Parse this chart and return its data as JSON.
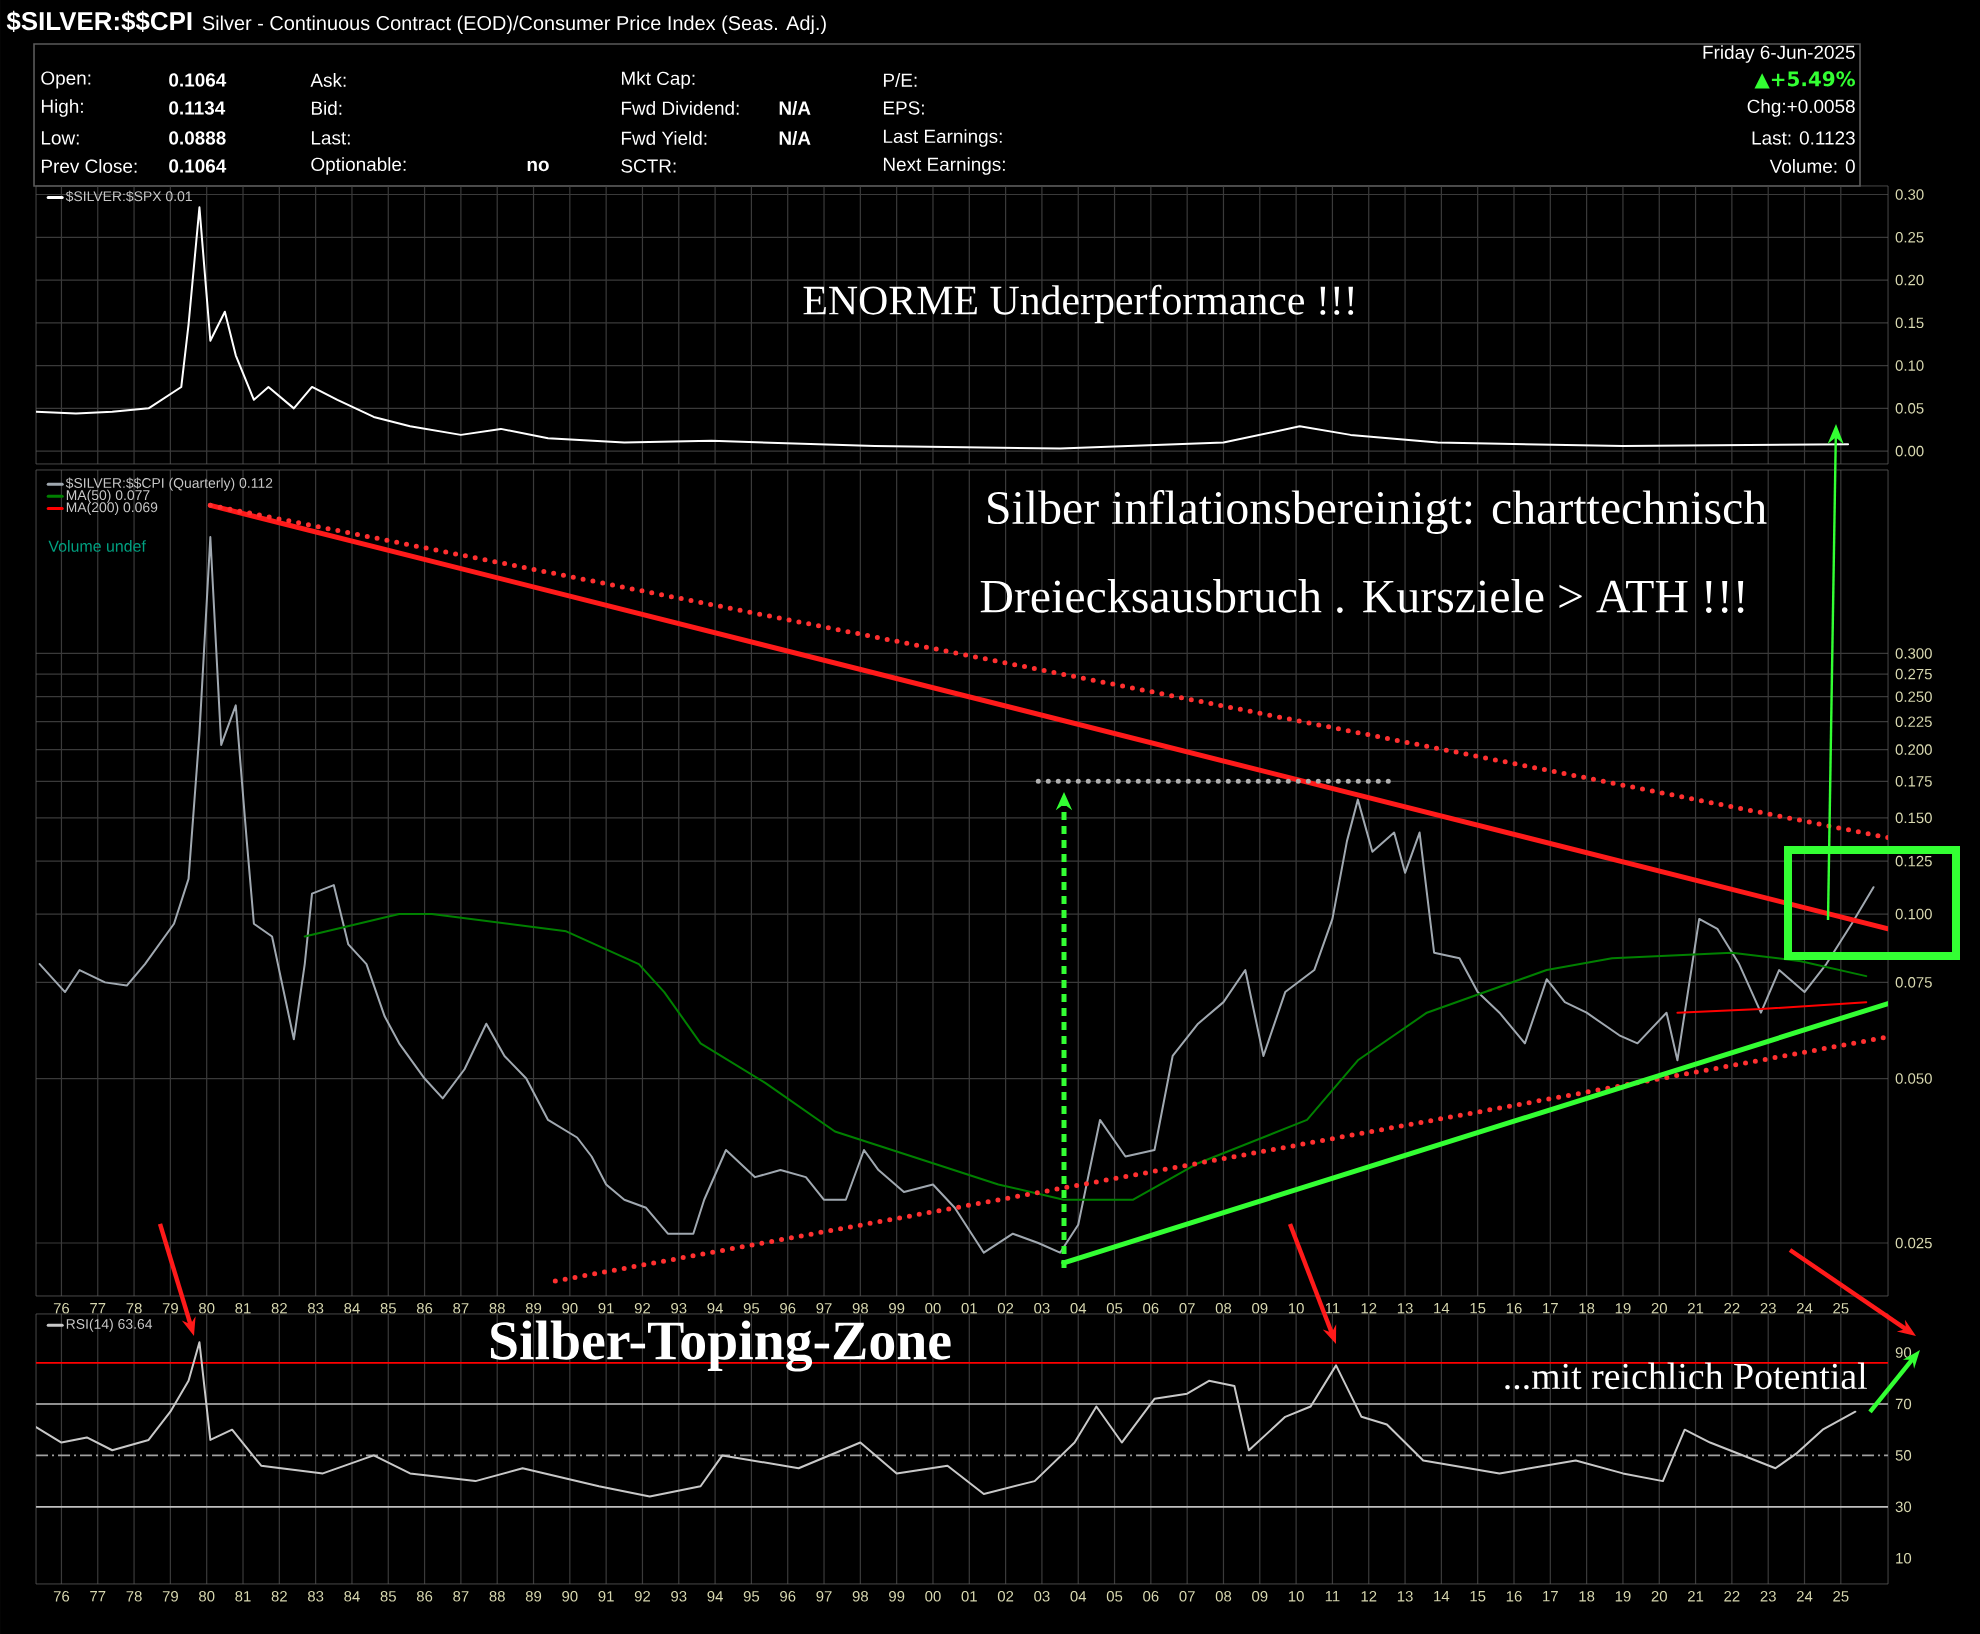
{
  "chart_data": [
    {
      "type": "line",
      "title": "$SILVER:$$CPI",
      "subtitle": "Silver - Continuous Contract (EOD)/Consumer Price Index (Seas. Adj.)",
      "annotations": [
        "Open:",
        "0.1064",
        "High:",
        "0.1134",
        "Low:",
        "0.0888",
        "Prev Close:",
        "0.1064",
        "Ask:",
        "Bid:",
        "Last:",
        "Optionable:",
        "no",
        "Mkt Cap:",
        "Fwd Dividend:",
        "N/A",
        "Fwd Yield:",
        "N/A",
        "SCTR:",
        "P/E:",
        "EPS:",
        "Last Earnings:",
        "Next Earnings:",
        "Friday  6-Jun-2025",
        "▲+5.49%",
        "Chg:+0.0058",
        "Last: 0.1123",
        "Volume:    0",
        "ENORME Underperformance !!!"
      ],
      "x": [
        1975.3,
        1976.4,
        1977.4,
        1978.4,
        1979.3,
        1979.5,
        1979.8,
        1980.1,
        1980.5,
        1980.8,
        1981.3,
        1981.7,
        1982.4,
        1982.9,
        1983.6,
        1984.6,
        1985.6,
        1987.0,
        1988.1,
        1989.4,
        1991.5,
        1993.9,
        1998.4,
        2003.5,
        2008.0,
        2010.1,
        2011.5,
        2013.9,
        2019.0,
        2025.2
      ],
      "series": [
        {
          "name": "$SILVER:$SPX 0.01",
          "color": "#ffffff",
          "values": [
            0.046,
            0.044,
            0.046,
            0.05,
            0.075,
            0.148,
            0.285,
            0.129,
            0.163,
            0.112,
            0.06,
            0.075,
            0.05,
            0.075,
            0.06,
            0.04,
            0.029,
            0.019,
            0.026,
            0.015,
            0.01,
            0.012,
            0.006,
            0.003,
            0.01,
            0.029,
            0.019,
            0.01,
            0.006,
            0.008
          ]
        }
      ],
      "xlim": [
        1975.3,
        2026.3
      ],
      "ylim": [
        -0.015,
        0.31
      ],
      "xticks": [
        1976,
        1977,
        1978,
        1979,
        1980,
        1981,
        1982,
        1983,
        1984,
        1985,
        1986,
        1987,
        1988,
        1989,
        1990,
        1991,
        1992,
        1993,
        1994,
        1995,
        1996,
        1997,
        1998,
        1999,
        2000,
        2001,
        2002,
        2003,
        2004,
        2005,
        2006,
        2007,
        2008,
        2009,
        2010,
        2011,
        2012,
        2013,
        2014,
        2015,
        2016,
        2017,
        2018,
        2019,
        2020,
        2021,
        2022,
        2023,
        2024,
        2025
      ],
      "yticks": [
        {
          "value": 0,
          "label": "0.00"
        },
        0.05,
        {
          "value": 0.1,
          "label": "0.10"
        },
        0.15,
        {
          "value": 0.2,
          "label": "0.20"
        },
        0.25,
        {
          "value": 0.3,
          "label": "0.30"
        }
      ],
      "tick_labels": "y",
      "grid": true,
      "legend": "top left"
    },
    {
      "type": "line",
      "log": true,
      "annotations": [
        "Silber inflationsbereinigt: charttechnisch",
        "Dreiecksausbruch . Kursziele > ATH !!!",
        "Volume undef"
      ],
      "series": [
        {
          "name": "$SILVER:$$CPI (Quarterly) 0.112",
          "color": "#a0a8b0",
          "x": [
            1975.4,
            1976.1,
            1976.5,
            1977.2,
            1977.8,
            1978.3,
            1979.1,
            1979.5,
            1979.8,
            1980.1,
            1980.4,
            1980.8,
            1981.1,
            1981.3,
            1981.8,
            1982.4,
            1982.7,
            1982.9,
            1983.5,
            1983.9,
            1984.4,
            1984.9,
            1985.3,
            1986.0,
            1986.5,
            1987.1,
            1987.7,
            1988.2,
            1988.8,
            1989.4,
            1990.2,
            1990.6,
            1991.0,
            1991.5,
            1992.1,
            1992.7,
            1993.4,
            1993.7,
            1994.3,
            1995.1,
            1995.8,
            1996.5,
            1997.0,
            1997.6,
            1998.1,
            1998.5,
            1999.2,
            2000.0,
            2000.6,
            2001.4,
            2002.2,
            2002.9,
            2003.5,
            2004.0,
            2004.6,
            2005.3,
            2006.1,
            2006.6,
            2007.3,
            2008.0,
            2008.6,
            2009.1,
            2009.7,
            2010.5,
            2011.0,
            2011.4,
            2011.7,
            2012.1,
            2012.7,
            2013.0,
            2013.4,
            2013.8,
            2014.5,
            2015.0,
            2015.6,
            2016.3,
            2016.9,
            2017.4,
            2018.0,
            2018.9,
            2019.4,
            2020.2,
            2020.5,
            2021.1,
            2021.6,
            2022.2,
            2022.8,
            2023.3,
            2024.0,
            2024.6,
            2025.3,
            2025.9
          ],
          "values": [
            0.081,
            0.072,
            0.079,
            0.075,
            0.074,
            0.081,
            0.096,
            0.116,
            0.214,
            0.49,
            0.204,
            0.241,
            0.137,
            0.096,
            0.091,
            0.059,
            0.081,
            0.109,
            0.113,
            0.088,
            0.081,
            0.065,
            0.058,
            0.05,
            0.046,
            0.052,
            0.063,
            0.055,
            0.05,
            0.042,
            0.039,
            0.036,
            0.032,
            0.03,
            0.029,
            0.026,
            0.026,
            0.03,
            0.037,
            0.033,
            0.034,
            0.033,
            0.03,
            0.03,
            0.037,
            0.034,
            0.031,
            0.032,
            0.029,
            0.024,
            0.026,
            0.025,
            0.024,
            0.027,
            0.042,
            0.036,
            0.037,
            0.055,
            0.063,
            0.069,
            0.079,
            0.055,
            0.072,
            0.079,
            0.098,
            0.136,
            0.162,
            0.13,
            0.141,
            0.119,
            0.141,
            0.085,
            0.083,
            0.072,
            0.066,
            0.058,
            0.076,
            0.069,
            0.066,
            0.06,
            0.058,
            0.066,
            0.054,
            0.098,
            0.094,
            0.081,
            0.066,
            0.079,
            0.072,
            0.081,
            0.096,
            0.112
          ]
        },
        {
          "name": "MA(50) 0.077",
          "color": "#008000",
          "x": [
            1982.7,
            1985.3,
            1986.2,
            1989.9,
            1991.9,
            1992.6,
            1993.6,
            1995.4,
            1997.3,
            2000.0,
            2001.8,
            2003.6,
            2005.5,
            2007.3,
            2010.3,
            2011.7,
            2013.6,
            2016.9,
            2018.7,
            2022.0,
            2023.9,
            2025.7
          ],
          "values": [
            0.091,
            0.1,
            0.1,
            0.093,
            0.081,
            0.072,
            0.058,
            0.049,
            0.04,
            0.035,
            0.032,
            0.03,
            0.03,
            0.035,
            0.042,
            0.054,
            0.066,
            0.079,
            0.083,
            0.085,
            0.082,
            0.077
          ]
        },
        {
          "name": "MA(200) 0.069",
          "color": "#ff0000",
          "x": [
            2020.5,
            2022.8,
            2025.7
          ],
          "values": [
            0.066,
            0.067,
            0.069
          ]
        },
        {
          "color": "#ff1a1a",
          "x": [
            1980.1,
            2026.3
          ],
          "values": [
            0.56,
            0.094
          ]
        },
        {
          "color": "#ff3030",
          "line_style": "dotted",
          "x": [
            1980.1,
            2026.3
          ],
          "values": [
            0.56,
            0.138
          ]
        },
        {
          "color": "#ff3030",
          "line_style": "dotted",
          "x": [
            1989.6,
            2026.3
          ],
          "values": [
            0.0213,
            0.0596
          ]
        },
        {
          "color": "#33ff33",
          "x": [
            2003.6,
            2026.3
          ],
          "values": [
            0.023,
            0.0686
          ]
        },
        {
          "color": "#b0b0b0",
          "line_style": "dotted",
          "x": [
            2002.9,
            2012.6
          ],
          "values": [
            0.175,
            0.175
          ]
        }
      ],
      "xlim": [
        1975.3,
        2026.3
      ],
      "ylim": [
        0.02,
        0.65
      ],
      "xticks": [
        {
          "value": 1976,
          "label": "76"
        },
        {
          "value": 1977,
          "label": "77"
        },
        {
          "value": 1978,
          "label": "78"
        },
        {
          "value": 1979,
          "label": "79"
        },
        {
          "value": 1980,
          "label": "80"
        },
        {
          "value": 1981,
          "label": "81"
        },
        {
          "value": 1982,
          "label": "82"
        },
        {
          "value": 1983,
          "label": "83"
        },
        {
          "value": 1984,
          "label": "84"
        },
        {
          "value": 1985,
          "label": "85"
        },
        {
          "value": 1986,
          "label": "86"
        },
        {
          "value": 1987,
          "label": "87"
        },
        {
          "value": 1988,
          "label": "88"
        },
        {
          "value": 1989,
          "label": "89"
        },
        {
          "value": 1990,
          "label": "90"
        },
        {
          "value": 1991,
          "label": "91"
        },
        {
          "value": 1992,
          "label": "92"
        },
        {
          "value": 1993,
          "label": "93"
        },
        {
          "value": 1994,
          "label": "94"
        },
        {
          "value": 1995,
          "label": "95"
        },
        {
          "value": 1996,
          "label": "96"
        },
        {
          "value": 1997,
          "label": "97"
        },
        {
          "value": 1998,
          "label": "98"
        },
        {
          "value": 1999,
          "label": "99"
        },
        {
          "value": 2000,
          "label": "00"
        },
        {
          "value": 2001,
          "label": "01"
        },
        {
          "value": 2002,
          "label": "02"
        },
        {
          "value": 2003,
          "label": "03"
        },
        {
          "value": 2004,
          "label": "04"
        },
        {
          "value": 2005,
          "label": "05"
        },
        {
          "value": 2006,
          "label": "06"
        },
        {
          "value": 2007,
          "label": "07"
        },
        {
          "value": 2008,
          "label": "08"
        },
        {
          "value": 2009,
          "label": "09"
        },
        {
          "value": 2010,
          "label": "10"
        },
        {
          "value": 2011,
          "label": "11"
        },
        {
          "value": 2012,
          "label": "12"
        },
        {
          "value": 2013,
          "label": "13"
        },
        {
          "value": 2014,
          "label": "14"
        },
        {
          "value": 2015,
          "label": "15"
        },
        {
          "value": 2016,
          "label": "16"
        },
        {
          "value": 2017,
          "label": "17"
        },
        {
          "value": 2018,
          "label": "18"
        },
        {
          "value": 2019,
          "label": "19"
        },
        {
          "value": 2020,
          "label": "20"
        },
        {
          "value": 2021,
          "label": "21"
        },
        {
          "value": 2022,
          "label": "22"
        },
        {
          "value": 2023,
          "label": "23"
        },
        {
          "value": 2024,
          "label": "24"
        },
        {
          "value": 2025,
          "label": "25"
        }
      ],
      "yticks": [
        0.025,
        {
          "value": 0.05,
          "label": "0.050"
        },
        0.075,
        {
          "value": 0.1,
          "label": "0.100"
        },
        0.125,
        {
          "value": 0.15,
          "label": "0.150"
        },
        0.175,
        {
          "value": 0.2,
          "label": "0.200"
        },
        0.225,
        {
          "value": 0.25,
          "label": "0.250"
        },
        0.275,
        {
          "value": 0.3,
          "label": "0.300"
        }
      ],
      "grid": true,
      "legend": "top left"
    },
    {
      "type": "line",
      "annotations": [
        "Silber-Toping-Zone",
        "...mit reichlich Potential"
      ],
      "x": [
        1975.3,
        1976.0,
        1976.7,
        1977.4,
        1978.4,
        1979.0,
        1979.5,
        1979.8,
        1980.1,
        1980.7,
        1981.5,
        1983.2,
        1984.6,
        1985.6,
        1987.4,
        1988.7,
        1990.8,
        1992.2,
        1993.6,
        1994.2,
        1996.3,
        1998.0,
        1999.0,
        2000.4,
        2001.4,
        2002.8,
        2003.9,
        2004.5,
        2005.2,
        2006.1,
        2007.0,
        2007.6,
        2008.3,
        2008.7,
        2009.7,
        2010.4,
        2011.1,
        2011.8,
        2012.5,
        2013.5,
        2015.6,
        2017.7,
        2019.0,
        2020.1,
        2020.7,
        2021.4,
        2023.2,
        2023.8,
        2024.5,
        2025.4
      ],
      "series": [
        {
          "name": "RSI(14) 63.64",
          "color": "#c8c8c8",
          "values": [
            61,
            55,
            57,
            52,
            56,
            67,
            79,
            94,
            56,
            60,
            46,
            43,
            50,
            43,
            40,
            45,
            38,
            34,
            38,
            50,
            45,
            55,
            43,
            46,
            35,
            40,
            55,
            69,
            55,
            72,
            74,
            79,
            77,
            52,
            65,
            69,
            85,
            65,
            62,
            48,
            43,
            48,
            43,
            40,
            60,
            55,
            45,
            51,
            60,
            67
          ]
        }
      ],
      "ref_lines": [
        {
          "axis": "y",
          "value": 86,
          "color": "#ff0000"
        },
        {
          "axis": "y",
          "value": 70,
          "color": "#c0c0c0"
        },
        {
          "axis": "y",
          "value": 50,
          "color": "#a0a0a0",
          "line_style": "dashed"
        },
        {
          "axis": "y",
          "value": 30,
          "color": "#c0c0c0"
        }
      ],
      "xlim": [
        1975.3,
        2026.3
      ],
      "ylim": [
        0,
        105
      ],
      "xticks": [
        {
          "value": 1976,
          "label": "76"
        },
        {
          "value": 1977,
          "label": "77"
        },
        {
          "value": 1978,
          "label": "78"
        },
        {
          "value": 1979,
          "label": "79"
        },
        {
          "value": 1980,
          "label": "80"
        },
        {
          "value": 1981,
          "label": "81"
        },
        {
          "value": 1982,
          "label": "82"
        },
        {
          "value": 1983,
          "label": "83"
        },
        {
          "value": 1984,
          "label": "84"
        },
        {
          "value": 1985,
          "label": "85"
        },
        {
          "value": 1986,
          "label": "86"
        },
        {
          "value": 1987,
          "label": "87"
        },
        {
          "value": 1988,
          "label": "88"
        },
        {
          "value": 1989,
          "label": "89"
        },
        {
          "value": 1990,
          "label": "90"
        },
        {
          "value": 1991,
          "label": "91"
        },
        {
          "value": 1992,
          "label": "92"
        },
        {
          "value": 1993,
          "label": "93"
        },
        {
          "value": 1994,
          "label": "94"
        },
        {
          "value": 1995,
          "label": "95"
        },
        {
          "value": 1996,
          "label": "96"
        },
        {
          "value": 1997,
          "label": "97"
        },
        {
          "value": 1998,
          "label": "98"
        },
        {
          "value": 1999,
          "label": "99"
        },
        {
          "value": 2000,
          "label": "00"
        },
        {
          "value": 2001,
          "label": "01"
        },
        {
          "value": 2002,
          "label": "02"
        },
        {
          "value": 2003,
          "label": "03"
        },
        {
          "value": 2004,
          "label": "04"
        },
        {
          "value": 2005,
          "label": "05"
        },
        {
          "value": 2006,
          "label": "06"
        },
        {
          "value": 2007,
          "label": "07"
        },
        {
          "value": 2008,
          "label": "08"
        },
        {
          "value": 2009,
          "label": "09"
        },
        {
          "value": 2010,
          "label": "10"
        },
        {
          "value": 2011,
          "label": "11"
        },
        {
          "value": 2012,
          "label": "12"
        },
        {
          "value": 2013,
          "label": "13"
        },
        {
          "value": 2014,
          "label": "14"
        },
        {
          "value": 2015,
          "label": "15"
        },
        {
          "value": 2016,
          "label": "16"
        },
        {
          "value": 2017,
          "label": "17"
        },
        {
          "value": 2018,
          "label": "18"
        },
        {
          "value": 2019,
          "label": "19"
        },
        {
          "value": 2020,
          "label": "20"
        },
        {
          "value": 2021,
          "label": "21"
        },
        {
          "value": 2022,
          "label": "22"
        },
        {
          "value": 2023,
          "label": "23"
        },
        {
          "value": 2024,
          "label": "24"
        },
        {
          "value": 2025,
          "label": "25"
        }
      ],
      "yticks": [
        10,
        30,
        50,
        70,
        90
      ],
      "grid": "x",
      "legend": "top left"
    }
  ]
}
